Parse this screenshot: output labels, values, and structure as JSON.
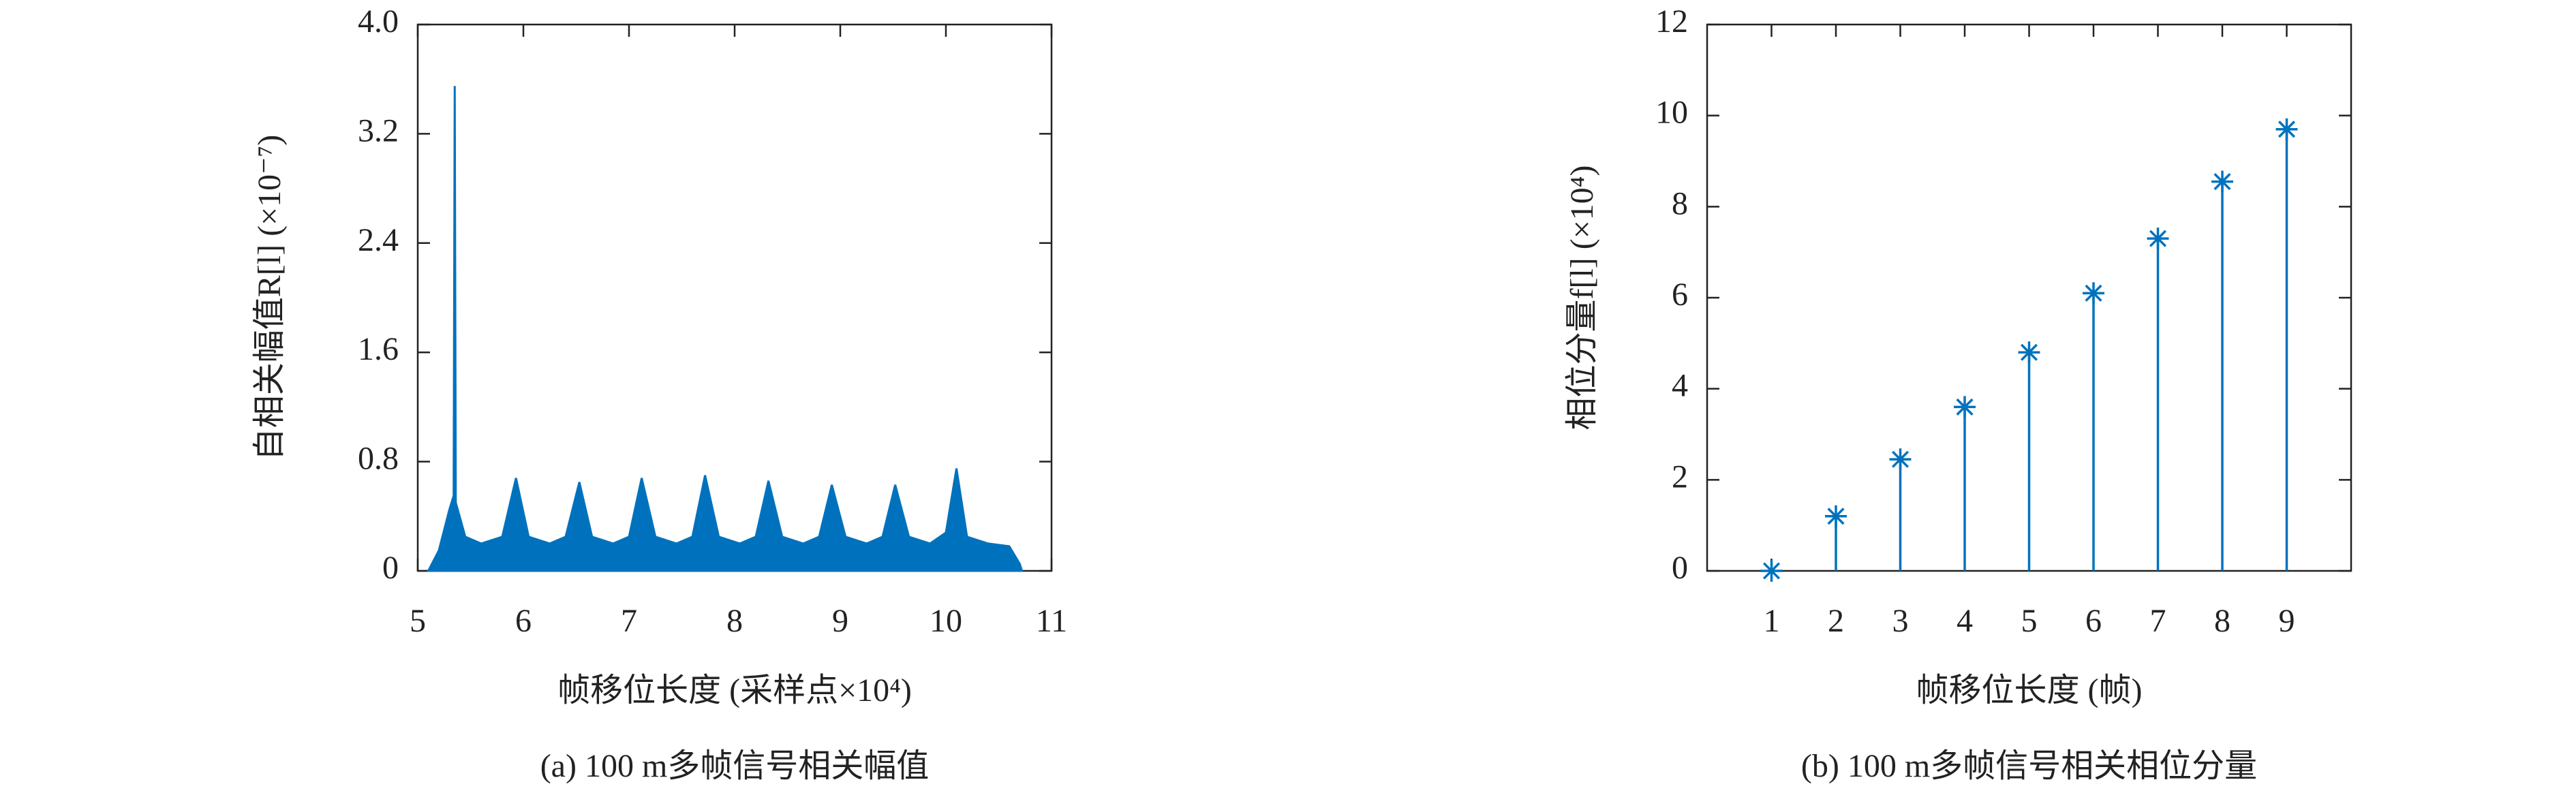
{
  "chart_data": [
    {
      "type": "area",
      "color": "#0072bd",
      "xlabel": "帧移位长度 (采样点×10⁴)",
      "ylabel": "自相关幅值R[l] (×10⁻⁷)",
      "caption": "(a) 100 m多帧信号相关幅值",
      "xlim": [
        5,
        11
      ],
      "xticks": [
        5,
        6,
        7,
        8,
        9,
        10,
        11
      ],
      "ylim": [
        0,
        4
      ],
      "yticks": [
        0,
        0.8,
        1.6,
        2.4,
        3.2,
        {
          "value": 4,
          "label": "4.0"
        }
      ],
      "x": [
        5.1,
        5.2,
        5.3,
        5.34,
        5.35,
        5.36,
        5.45,
        5.6,
        5.8,
        5.93,
        6.05,
        6.25,
        6.4,
        6.53,
        6.65,
        6.85,
        7.0,
        7.12,
        7.25,
        7.45,
        7.6,
        7.72,
        7.85,
        8.05,
        8.2,
        8.32,
        8.45,
        8.65,
        8.8,
        8.92,
        9.05,
        9.25,
        9.4,
        9.52,
        9.65,
        9.85,
        10.0,
        10.1,
        10.2,
        10.4,
        10.6,
        10.7,
        10.72
      ],
      "values": [
        0,
        0.15,
        0.45,
        0.55,
        3.55,
        0.5,
        0.25,
        0.2,
        0.25,
        0.68,
        0.25,
        0.2,
        0.25,
        0.65,
        0.25,
        0.2,
        0.25,
        0.68,
        0.25,
        0.2,
        0.25,
        0.7,
        0.25,
        0.2,
        0.25,
        0.66,
        0.25,
        0.2,
        0.25,
        0.63,
        0.25,
        0.2,
        0.25,
        0.63,
        0.25,
        0.2,
        0.28,
        0.75,
        0.25,
        0.2,
        0.18,
        0.05,
        0
      ]
    },
    {
      "type": "stem",
      "color": "#0072bd",
      "xlabel": "帧移位长度 (帧)",
      "ylabel": "相位分量f[l] (×10⁴)",
      "caption": "(b) 100 m多帧信号相关相位分量",
      "xlim": [
        0,
        10
      ],
      "xticks": [
        1,
        2,
        3,
        4,
        5,
        6,
        7,
        8,
        9
      ],
      "ylim": [
        0,
        12
      ],
      "yticks": [
        0,
        2,
        4,
        6,
        8,
        10,
        12
      ],
      "x": [
        1,
        2,
        3,
        4,
        5,
        6,
        7,
        8,
        9
      ],
      "values": [
        0,
        1.2,
        2.45,
        3.6,
        4.8,
        6.1,
        7.3,
        8.55,
        9.7
      ]
    }
  ]
}
